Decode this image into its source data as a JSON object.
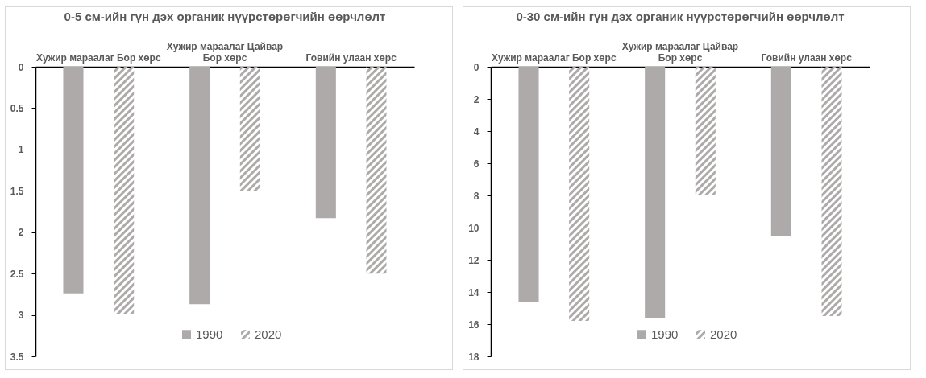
{
  "chart_data": [
    {
      "type": "bar",
      "title": "0-5 см-ийн гүн дэх органик нүүрстөрөгчийн өөрчлөлт",
      "categories": [
        "Хужир мараалаг Бор хөрс",
        "Хужир мараалаг Цайвар Бор хөрс",
        "Говийн улаан хөрс"
      ],
      "series": [
        {
          "name": "1990",
          "color": "#aeaaaa",
          "values": [
            2.74,
            2.87,
            1.83
          ]
        },
        {
          "name": "2020",
          "color": "#aeaaaa",
          "values": [
            2.99,
            1.5,
            2.5
          ]
        }
      ],
      "ylim": [
        3.5,
        0
      ],
      "yticks": [
        0,
        0.5,
        1,
        1.5,
        2,
        2.5,
        3,
        3.5
      ],
      "legend": "bottom",
      "grid": false
    },
    {
      "type": "bar",
      "title": "0-30 см-ийн гүн дэх органик нүүрстөрөгчийн өөрчлөлт",
      "categories": [
        "Хужир мараалаг Бор хөрс",
        "Хужир мараалаг Цайвар Бор хөрс",
        "Говийн улаан хөрс"
      ],
      "series": [
        {
          "name": "1990",
          "color": "#aeaaaa",
          "values": [
            14.6,
            15.6,
            10.5
          ]
        },
        {
          "name": "2020",
          "color": "#aeaaaa",
          "values": [
            15.8,
            8.0,
            15.5
          ]
        }
      ],
      "ylim": [
        18,
        0
      ],
      "yticks": [
        0,
        2,
        4,
        6,
        8,
        10,
        12,
        14,
        16,
        18
      ],
      "legend": "bottom",
      "grid": false
    }
  ]
}
